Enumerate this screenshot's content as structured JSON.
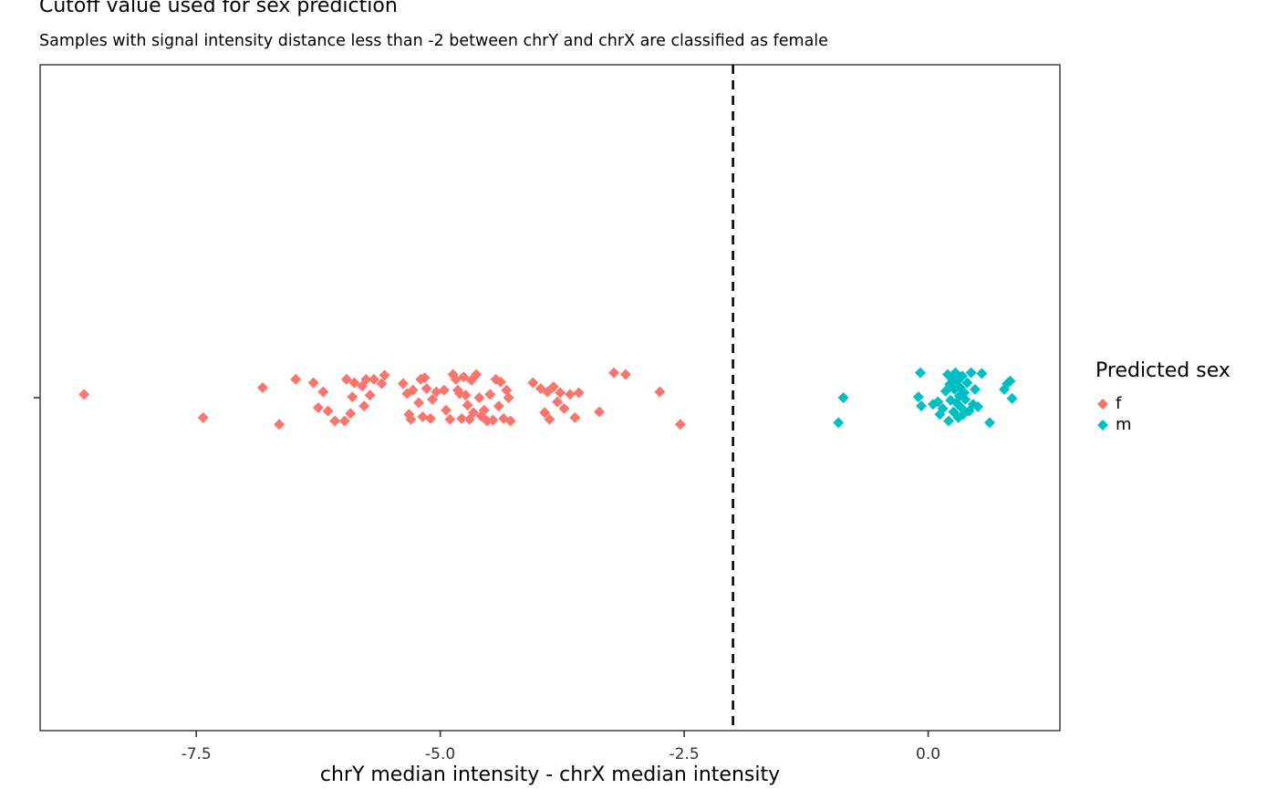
{
  "chart_data": {
    "type": "scatter",
    "title": "Cutoff value used for sex prediction",
    "subtitle": "Samples with signal intensity distance less than -2 between chrY and chrX are classified as female",
    "xlabel": "chrY median intensity - chrX median intensity",
    "ylabel": "",
    "xlim": [
      -9.1,
      1.35
    ],
    "ylim": [
      -0.4,
      0.4
    ],
    "x_ticks": [
      -7.5,
      -5.0,
      -2.5,
      0.0
    ],
    "x_tick_labels": [
      "-7.5",
      "-5.0",
      "-2.5",
      "0.0"
    ],
    "cutoff": {
      "x": -2,
      "style": "dashed",
      "color": "#000000"
    },
    "legend": {
      "title": "Predicted sex",
      "position": "right"
    },
    "series": [
      {
        "name": "f",
        "color": "#F8766D",
        "marker": "diamond",
        "points": [
          [
            -8.65,
            0.004
          ],
          [
            -7.43,
            -0.024
          ],
          [
            -6.82,
            0.012
          ],
          [
            -6.65,
            -0.032
          ],
          [
            -6.48,
            0.022
          ],
          [
            -6.3,
            0.018
          ],
          [
            -6.25,
            -0.012
          ],
          [
            -6.2,
            0.007
          ],
          [
            -6.15,
            -0.016
          ],
          [
            -6.08,
            -0.028
          ],
          [
            -5.98,
            -0.028
          ],
          [
            -5.96,
            0.022
          ],
          [
            -5.92,
            -0.019
          ],
          [
            -5.9,
            0.001
          ],
          [
            -5.88,
            0.018
          ],
          [
            -5.8,
            0.014
          ],
          [
            -5.78,
            -0.01
          ],
          [
            -5.76,
            0.022
          ],
          [
            -5.72,
            0.003
          ],
          [
            -5.68,
            0.022
          ],
          [
            -5.6,
            0.017
          ],
          [
            -5.57,
            0.027
          ],
          [
            -5.38,
            0.017
          ],
          [
            -5.34,
            0.005
          ],
          [
            -5.32,
            -0.02
          ],
          [
            -5.3,
            -0.026
          ],
          [
            -5.28,
            0.009
          ],
          [
            -5.22,
            -0.006
          ],
          [
            -5.2,
            0.022
          ],
          [
            -5.18,
            -0.023
          ],
          [
            -5.16,
            0.024
          ],
          [
            -5.14,
            0.011
          ],
          [
            -5.1,
            -0.025
          ],
          [
            -5.08,
            -0.002
          ],
          [
            -5.04,
            0.007
          ],
          [
            -4.96,
            0.009
          ],
          [
            -4.94,
            -0.015
          ],
          [
            -4.9,
            -0.026
          ],
          [
            -4.87,
            0.028
          ],
          [
            -4.84,
            0.022
          ],
          [
            -4.82,
            0.009
          ],
          [
            -4.8,
            0.005
          ],
          [
            -4.78,
            -0.025
          ],
          [
            -4.76,
            0.025
          ],
          [
            -4.74,
            0.003
          ],
          [
            -4.72,
            -0.009
          ],
          [
            -4.7,
            -0.026
          ],
          [
            -4.68,
            0.021
          ],
          [
            -4.66,
            -0.018
          ],
          [
            -4.63,
            0.028
          ],
          [
            -4.6,
            0.0
          ],
          [
            -4.58,
            -0.022
          ],
          [
            -4.55,
            -0.015
          ],
          [
            -4.52,
            -0.028
          ],
          [
            -4.49,
            0.004
          ],
          [
            -4.46,
            -0.027
          ],
          [
            -4.43,
            0.022
          ],
          [
            -4.4,
            -0.01
          ],
          [
            -4.38,
            0.019
          ],
          [
            -4.35,
            -0.025
          ],
          [
            -4.32,
            0.009
          ],
          [
            -4.3,
            0.0
          ],
          [
            -4.28,
            -0.028
          ],
          [
            -4.05,
            0.018
          ],
          [
            -3.97,
            0.011
          ],
          [
            -3.93,
            -0.018
          ],
          [
            -3.9,
            0.007
          ],
          [
            -3.88,
            -0.026
          ],
          [
            -3.84,
            0.013
          ],
          [
            -3.8,
            -0.005
          ],
          [
            -3.77,
            0.006
          ],
          [
            -3.73,
            -0.013
          ],
          [
            -3.67,
            0.004
          ],
          [
            -3.62,
            -0.024
          ],
          [
            -3.58,
            0.006
          ],
          [
            -3.37,
            -0.017
          ],
          [
            -3.22,
            0.03
          ],
          [
            -3.1,
            0.028
          ],
          [
            -2.75,
            0.007
          ],
          [
            -2.54,
            -0.032
          ]
        ]
      },
      {
        "name": "m",
        "color": "#00BFC4",
        "marker": "diamond",
        "points": [
          [
            -0.92,
            -0.03
          ],
          [
            -0.87,
            0.0
          ],
          [
            -0.08,
            0.03
          ],
          [
            -0.1,
            0.001
          ],
          [
            -0.07,
            -0.01
          ],
          [
            0.05,
            -0.008
          ],
          [
            0.1,
            -0.005
          ],
          [
            0.12,
            -0.02
          ],
          [
            0.15,
            -0.013
          ],
          [
            0.18,
            0.008
          ],
          [
            0.2,
            0.028
          ],
          [
            0.21,
            -0.028
          ],
          [
            0.22,
            0.016
          ],
          [
            0.23,
            -0.003
          ],
          [
            0.25,
            0.022
          ],
          [
            0.26,
            -0.017
          ],
          [
            0.27,
            0.01
          ],
          [
            0.28,
            0.03
          ],
          [
            0.29,
            -0.006
          ],
          [
            0.3,
            0.02
          ],
          [
            0.31,
            -0.024
          ],
          [
            0.32,
            0.002
          ],
          [
            0.33,
            0.012
          ],
          [
            0.34,
            -0.012
          ],
          [
            0.35,
            0.026
          ],
          [
            0.36,
            -0.02
          ],
          [
            0.37,
            0.006
          ],
          [
            0.38,
            -0.002
          ],
          [
            0.4,
            0.018
          ],
          [
            0.42,
            -0.016
          ],
          [
            0.44,
            0.03
          ],
          [
            0.46,
            -0.008
          ],
          [
            0.48,
            0.01
          ],
          [
            0.51,
            -0.011
          ],
          [
            0.55,
            0.029
          ],
          [
            0.63,
            -0.03
          ],
          [
            0.78,
            0.01
          ],
          [
            0.81,
            0.017
          ],
          [
            0.84,
            0.02
          ],
          [
            0.86,
            -0.001
          ]
        ]
      }
    ]
  }
}
